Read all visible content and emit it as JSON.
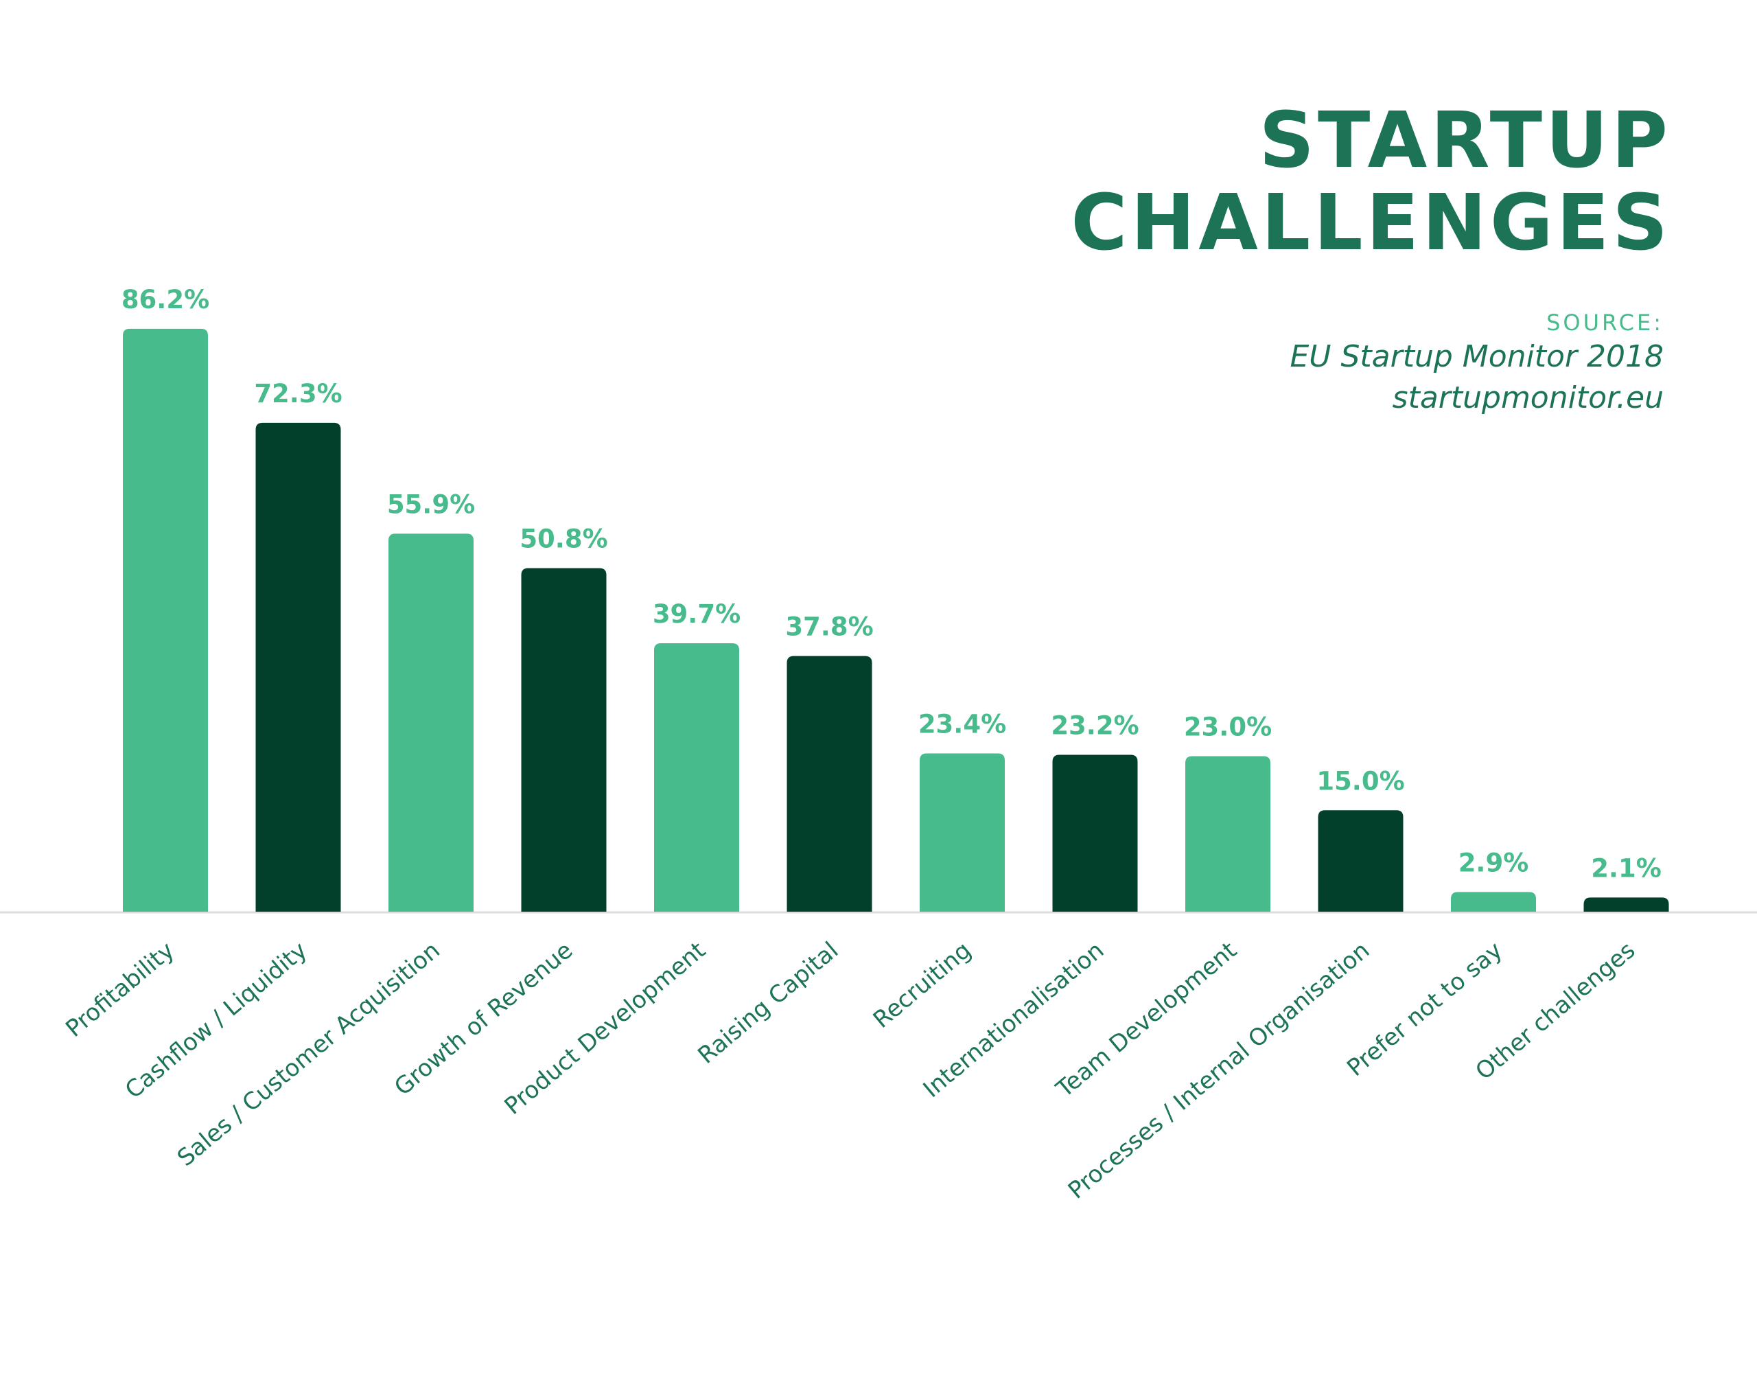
{
  "title_lines": [
    "STARTUP",
    "CHALLENGES"
  ],
  "source": {
    "label": "SOURCE:",
    "lines": [
      "EU Startup Monitor 2018",
      "startupmonitor.eu"
    ]
  },
  "colors": {
    "light": "#47bb8b",
    "dark": "#03402c",
    "title": "#1d7356",
    "axis": "#dddddd"
  },
  "chart_data": {
    "type": "bar",
    "title": "STARTUP CHALLENGES",
    "xlabel": "",
    "ylabel": "",
    "ylim": [
      0,
      100
    ],
    "grid": false,
    "legend": "none",
    "categories": [
      "Profitability",
      "Cashflow / Liquidity",
      "Sales / Customer Acquisition",
      "Growth of Revenue",
      "Product Development",
      "Raising Capital",
      "Recruiting",
      "Internationalisation",
      "Team Development",
      "Processes / Internal Organisation",
      "Prefer not to say",
      "Other challenges"
    ],
    "values": [
      86.2,
      72.3,
      55.9,
      50.8,
      39.7,
      37.8,
      23.4,
      23.2,
      23.0,
      15.0,
      2.9,
      2.1
    ],
    "value_labels": [
      "86.2%",
      "72.3%",
      "55.9%",
      "50.8%",
      "39.7%",
      "37.8%",
      "23.4%",
      "23.2%",
      "23.0%",
      "15.0%",
      "2.9%",
      "2.1%"
    ],
    "bar_colors": [
      "light",
      "dark",
      "light",
      "dark",
      "light",
      "dark",
      "light",
      "dark",
      "light",
      "dark",
      "light",
      "dark"
    ]
  }
}
